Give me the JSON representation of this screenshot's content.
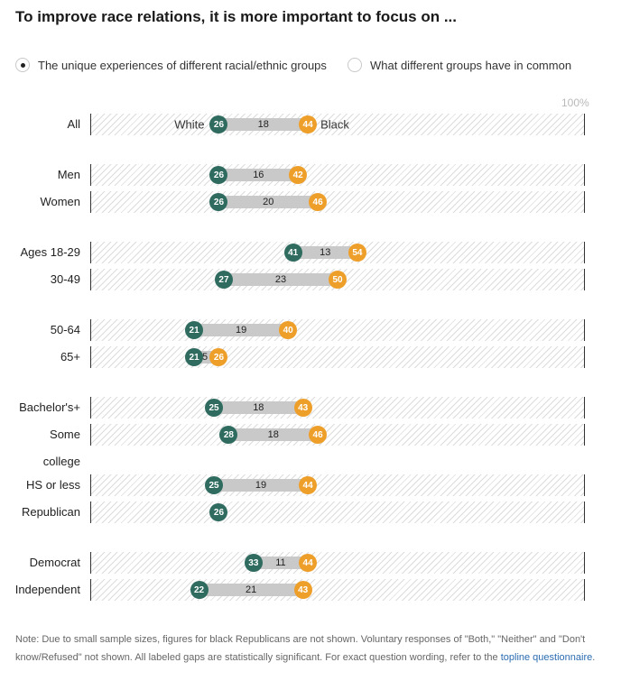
{
  "title": "To improve race relations, it is more important to focus on ...",
  "toggles": [
    {
      "label": "The unique experiences of different racial/ethnic groups",
      "selected": true
    },
    {
      "label": "What different groups have in common",
      "selected": false
    }
  ],
  "colors": {
    "white": "#2f6b5f",
    "black": "#ee9f2a",
    "gap": "#c9c9c9"
  },
  "chart_data": {
    "type": "dot",
    "xlim": [
      0,
      100
    ],
    "x_tick_label": "100%",
    "series": [
      {
        "name": "White",
        "key": "white"
      },
      {
        "name": "Black",
        "key": "black"
      }
    ],
    "rows": [
      {
        "label": "All",
        "white": 26,
        "black": 44,
        "gap": 18
      },
      {
        "label": "Men",
        "white": 26,
        "black": 42,
        "gap": 16
      },
      {
        "label": "Women",
        "white": 26,
        "black": 46,
        "gap": 20
      },
      {
        "label": "Ages 18-29",
        "white": 41,
        "black": 54,
        "gap": 13
      },
      {
        "label": "30-49",
        "white": 27,
        "black": 50,
        "gap": 23
      },
      {
        "label": "50-64",
        "white": 21,
        "black": 40,
        "gap": 19
      },
      {
        "label": "65+",
        "white": 21,
        "black": 26,
        "gap": 5
      },
      {
        "label": "Bachelor's+",
        "white": 25,
        "black": 43,
        "gap": 18
      },
      {
        "label": "Some college",
        "white": 28,
        "black": 46,
        "gap": 18
      },
      {
        "label": "HS or less",
        "white": 25,
        "black": 44,
        "gap": 19
      },
      {
        "label": "Republican",
        "white": 26,
        "black": null,
        "gap": null
      },
      {
        "label": "Democrat",
        "white": 33,
        "black": 44,
        "gap": 11
      },
      {
        "label": "Independent",
        "white": 22,
        "black": 43,
        "gap": 21
      }
    ]
  },
  "note": {
    "text": "Note: Due to small sample sizes, figures for black Republicans are not shown. Voluntary responses of \"Both,\" \"Neither\" and \"Don't know/Refused\" not shown. All labeled gaps are statistically significant. For exact question wording, refer to the ",
    "link_text": "topline questionnaire",
    "end": "."
  }
}
